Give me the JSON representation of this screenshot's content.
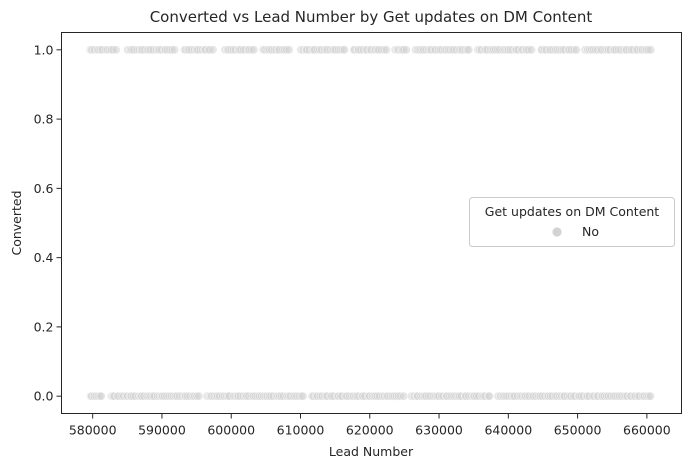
{
  "chart_data": {
    "type": "scatter",
    "title": "Converted vs Lead Number by Get updates on DM Content",
    "xlabel": "Lead Number",
    "ylabel": "Converted",
    "xlim": [
      575500,
      665000
    ],
    "ylim": [
      -0.05,
      1.05
    ],
    "x_ticks": [
      580000,
      590000,
      600000,
      610000,
      620000,
      630000,
      640000,
      650000,
      660000
    ],
    "x_tick_labels": [
      "580000",
      "590000",
      "600000",
      "610000",
      "620000",
      "630000",
      "640000",
      "650000",
      "660000"
    ],
    "y_ticks": [
      0.0,
      0.2,
      0.4,
      0.6,
      0.8,
      1.0
    ],
    "y_tick_labels": [
      "0.0",
      "0.2",
      "0.4",
      "0.6",
      "0.8",
      "1.0"
    ],
    "grid": false,
    "legend": {
      "title": "Get updates on DM Content",
      "placement": "center-right",
      "entries": [
        "No"
      ]
    },
    "series": [
      {
        "name": "No",
        "color": "#d3d3d3",
        "x_range_y1": [
          579500,
          660700
        ],
        "x_range_y0": [
          579500,
          660700
        ],
        "points": [
          {
            "y": 1,
            "x_segments": [
              [
                579500,
                583500
              ],
              [
                585000,
                592000
              ],
              [
                593000,
                597500
              ],
              [
                599000,
                603500
              ],
              [
                604500,
                608500
              ],
              [
                610000,
                616500
              ],
              [
                617500,
                622500
              ],
              [
                623500,
                625500
              ],
              [
                626500,
                634500
              ],
              [
                635500,
                643500
              ],
              [
                644500,
                650000
              ],
              [
                651000,
                660700
              ]
            ]
          },
          {
            "y": 0,
            "x_segments": [
              [
                579500,
                581500
              ],
              [
                582500,
                595500
              ],
              [
                596500,
                610500
              ],
              [
                611500,
                625000
              ],
              [
                626000,
                637500
              ],
              [
                638500,
                660700
              ]
            ]
          }
        ]
      }
    ]
  }
}
